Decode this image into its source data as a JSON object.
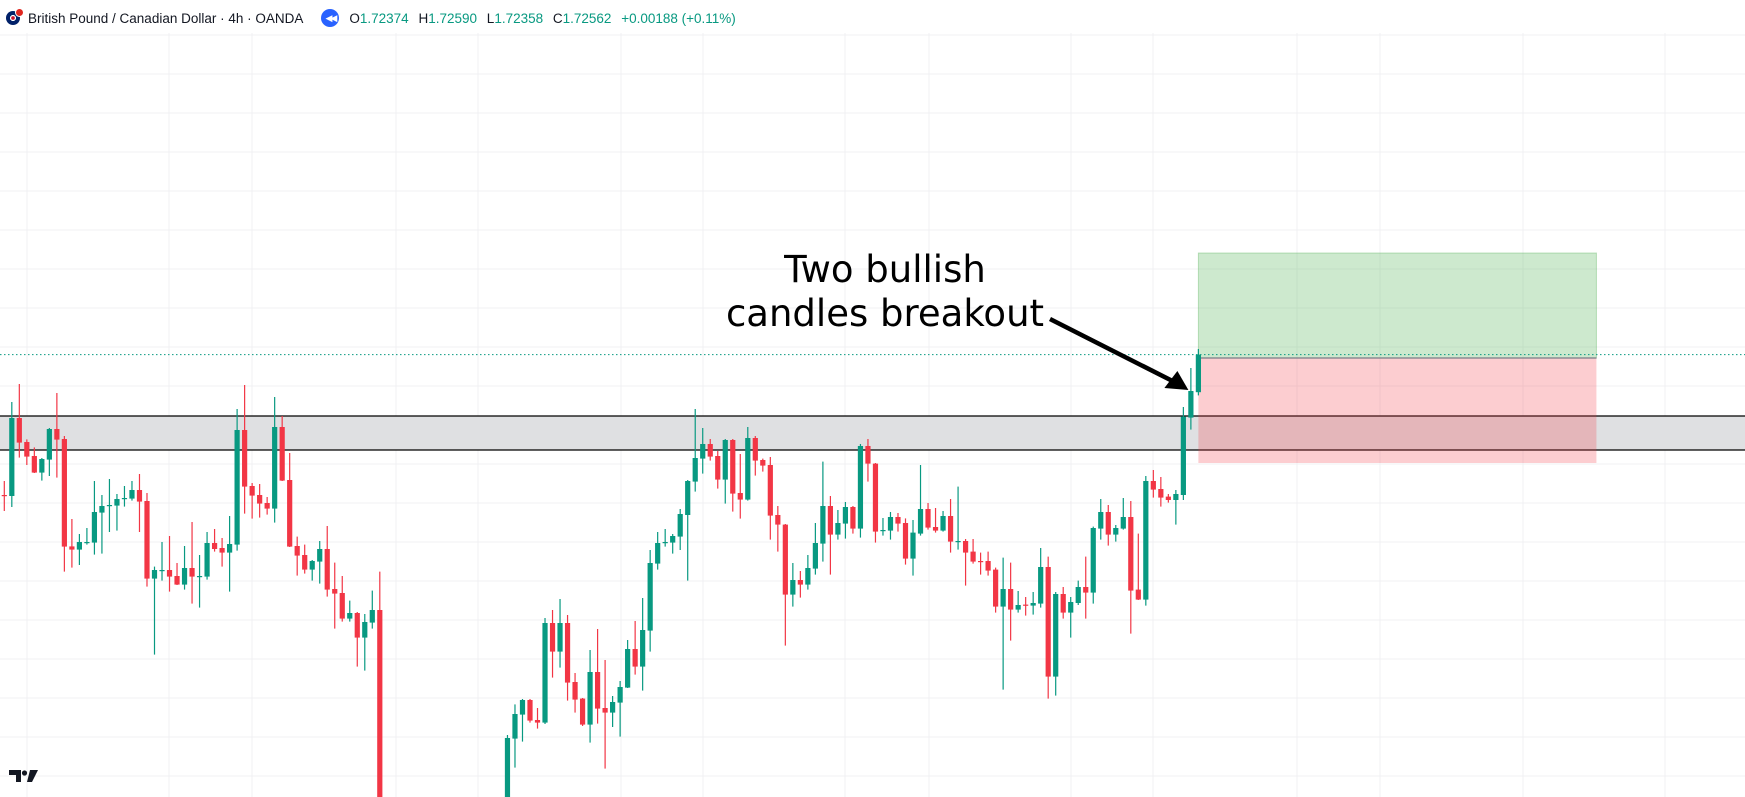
{
  "header": {
    "title": "British Pound / Canadian Dollar · 4h · OANDA",
    "replay_icon": "rewind-icon",
    "ohlc": {
      "o_label": "O",
      "o": "1.72374",
      "h_label": "H",
      "h": "1.72590",
      "l_label": "L",
      "l": "1.72358",
      "c_label": "C",
      "c": "1.72562",
      "change": "+0.00188 (+0.11%)"
    }
  },
  "colors": {
    "up": "#089981",
    "down": "#f23645",
    "zone": "#dfe0e2",
    "target": "#cdebcc",
    "stop": "#fdcaca",
    "accent": "#2962ff"
  },
  "chart_data": {
    "type": "candlestick",
    "symbol": "GBPCAD",
    "timeframe": "4h",
    "grid": true,
    "price_axis_visible": false,
    "last_price": 1.72562,
    "candles_ohlc": [
      [
        1.7186,
        1.7193,
        1.7178,
        1.71855
      ],
      [
        1.71855,
        1.72325,
        1.718,
        1.72245
      ],
      [
        1.72245,
        1.72415,
        1.72047,
        1.72122
      ],
      [
        1.72125,
        1.72138,
        1.7201,
        1.72052
      ],
      [
        1.72055,
        1.72098,
        1.7197,
        1.71972
      ],
      [
        1.71972,
        1.72045,
        1.71932,
        1.7204
      ],
      [
        1.72037,
        1.72195,
        1.71955,
        1.7219
      ],
      [
        1.7219,
        1.7237,
        1.71947,
        1.72137
      ],
      [
        1.7214,
        1.72155,
        1.71477,
        1.71602
      ],
      [
        1.71603,
        1.7174,
        1.71497,
        1.71587
      ],
      [
        1.71587,
        1.71665,
        1.7151,
        1.71625
      ],
      [
        1.7162,
        1.71695,
        1.71612,
        1.71625
      ],
      [
        1.71622,
        1.7193,
        1.71562,
        1.71775
      ],
      [
        1.71772,
        1.7186,
        1.71567,
        1.71805
      ],
      [
        1.71807,
        1.7194,
        1.71675,
        1.7181
      ],
      [
        1.71807,
        1.71865,
        1.71682,
        1.7184
      ],
      [
        1.71842,
        1.71905,
        1.71802,
        1.71845
      ],
      [
        1.71842,
        1.7193,
        1.71832,
        1.71885
      ],
      [
        1.71885,
        1.71965,
        1.71675,
        1.71827
      ],
      [
        1.7183,
        1.7187,
        1.71402,
        1.71442
      ],
      [
        1.71442,
        1.71502,
        1.71062,
        1.71485
      ],
      [
        1.71482,
        1.71625,
        1.71432,
        1.71485
      ],
      [
        1.71485,
        1.71655,
        1.71377,
        1.71452
      ],
      [
        1.71455,
        1.7152,
        1.7141,
        1.71412
      ],
      [
        1.71412,
        1.71605,
        1.71387,
        1.71495
      ],
      [
        1.71495,
        1.71725,
        1.71317,
        1.71452
      ],
      [
        1.71452,
        1.7156,
        1.71297,
        1.71455
      ],
      [
        1.71452,
        1.71675,
        1.71437,
        1.7162
      ],
      [
        1.7162,
        1.7169,
        1.71577,
        1.7159
      ],
      [
        1.71595,
        1.71645,
        1.71502,
        1.71572
      ],
      [
        1.71572,
        1.71755,
        1.71377,
        1.71615
      ],
      [
        1.71612,
        1.7229,
        1.71582,
        1.72185
      ],
      [
        1.72185,
        1.7241,
        1.71767,
        1.71902
      ],
      [
        1.71905,
        1.7192,
        1.71742,
        1.71857
      ],
      [
        1.7186,
        1.71915,
        1.71747,
        1.71817
      ],
      [
        1.7182,
        1.7185,
        1.71762,
        1.71792
      ],
      [
        1.71792,
        1.7235,
        1.71722,
        1.722
      ],
      [
        1.722,
        1.72255,
        1.7193,
        1.71932
      ],
      [
        1.71935,
        1.7207,
        1.716,
        1.71602
      ],
      [
        1.71605,
        1.71652,
        1.71457,
        1.71557
      ],
      [
        1.7156,
        1.71612,
        1.71467,
        1.71487
      ],
      [
        1.71487,
        1.71535,
        1.71432,
        1.7153
      ],
      [
        1.71527,
        1.7163,
        1.71417,
        1.7159
      ],
      [
        1.7159,
        1.71705,
        1.71352,
        1.71387
      ],
      [
        1.7139,
        1.71522,
        1.71192,
        1.71367
      ],
      [
        1.7137,
        1.71455,
        1.71227,
        1.71242
      ],
      [
        1.71242,
        1.71332,
        1.71227,
        1.7127
      ],
      [
        1.7127,
        1.71275,
        1.71002,
        1.71147
      ],
      [
        1.71147,
        1.71265,
        1.70982,
        1.71225
      ],
      [
        1.71222,
        1.71382,
        1.71192,
        1.71285
      ],
      [
        1.71285,
        1.71477,
        1.7012,
        1.702
      ],
      null,
      null,
      null,
      null,
      null,
      null,
      null,
      null,
      null,
      null,
      null,
      null,
      null,
      null,
      null,
      null,
      [
        1.7025,
        1.7066,
        1.702,
        1.70645
      ],
      [
        1.70642,
        1.70813,
        1.70497,
        1.70765
      ],
      [
        1.70762,
        1.7084,
        1.70627,
        1.70835
      ],
      [
        1.70835,
        1.7084,
        1.70722,
        1.70732
      ],
      [
        1.70735,
        1.70795,
        1.70692,
        1.70722
      ],
      [
        1.70722,
        1.71245,
        1.70715,
        1.7122
      ],
      [
        1.7122,
        1.71285,
        1.70947,
        1.71077
      ],
      [
        1.71077,
        1.7134,
        1.70997,
        1.7122
      ],
      [
        1.7122,
        1.7126,
        1.70832,
        1.70922
      ],
      [
        1.70925,
        1.7097,
        1.70772,
        1.70837
      ],
      [
        1.70842,
        1.70845,
        1.70705,
        1.70712
      ],
      [
        1.70712,
        1.71085,
        1.70622,
        1.70975
      ],
      [
        1.70975,
        1.7119,
        1.70717,
        1.70792
      ],
      [
        1.70795,
        1.71035,
        1.70492,
        1.70772
      ],
      [
        1.70772,
        1.70855,
        1.707,
        1.70825
      ],
      [
        1.70822,
        1.7093,
        1.70652,
        1.709
      ],
      [
        1.70897,
        1.71135,
        1.70895,
        1.7109
      ],
      [
        1.7109,
        1.7123,
        1.70962,
        1.71002
      ],
      [
        1.71002,
        1.71345,
        1.70882,
        1.71185
      ],
      [
        1.71182,
        1.71585,
        1.71077,
        1.7152
      ],
      [
        1.71517,
        1.71675,
        1.71487,
        1.7162
      ],
      [
        1.71622,
        1.7169,
        1.71602,
        1.71625
      ],
      [
        1.71622,
        1.71665,
        1.71567,
        1.71655
      ],
      [
        1.71652,
        1.7179,
        1.71585,
        1.71765
      ],
      [
        1.7176,
        1.71935,
        1.71432,
        1.7193
      ],
      [
        1.71927,
        1.7229,
        1.71877,
        1.72045
      ],
      [
        1.72042,
        1.72195,
        1.71967,
        1.72115
      ],
      [
        1.72115,
        1.7214,
        1.72032,
        1.72052
      ],
      [
        1.72055,
        1.7208,
        1.71892,
        1.71937
      ],
      [
        1.71937,
        1.7214,
        1.71817,
        1.72135
      ],
      [
        1.72135,
        1.7214,
        1.71777,
        1.71867
      ],
      [
        1.7187,
        1.72065,
        1.71742,
        1.71837
      ],
      [
        1.71837,
        1.722,
        1.71832,
        1.72145
      ],
      [
        1.72145,
        1.72155,
        1.71957,
        1.72032
      ],
      [
        1.72035,
        1.72042,
        1.71977,
        1.72007
      ],
      [
        1.7201,
        1.7205,
        1.71637,
        1.71757
      ],
      [
        1.7176,
        1.71805,
        1.71577,
        1.71712
      ],
      [
        1.71712,
        1.71715,
        1.71107,
        1.71362
      ],
      [
        1.71362,
        1.7152,
        1.71302,
        1.71435
      ],
      [
        1.71435,
        1.7148,
        1.71347,
        1.71412
      ],
      [
        1.71412,
        1.7156,
        1.71387,
        1.71495
      ],
      [
        1.71492,
        1.7172,
        1.71462,
        1.7162
      ],
      [
        1.71617,
        1.72027,
        1.71527,
        1.71805
      ],
      [
        1.71805,
        1.71855,
        1.71462,
        1.71662
      ],
      [
        1.71662,
        1.71785,
        1.71637,
        1.7172
      ],
      [
        1.71717,
        1.71825,
        1.71642,
        1.718
      ],
      [
        1.718,
        1.71805,
        1.71667,
        1.71692
      ],
      [
        1.71692,
        1.72115,
        1.71647,
        1.72105
      ],
      [
        1.72105,
        1.7214,
        1.71927,
        1.72017
      ],
      [
        1.72017,
        1.7202,
        1.71622,
        1.71677
      ],
      [
        1.71682,
        1.71745,
        1.71657,
        1.71685
      ],
      [
        1.71682,
        1.71775,
        1.71637,
        1.7175
      ],
      [
        1.7175,
        1.7177,
        1.71677,
        1.71717
      ],
      [
        1.7172,
        1.71743,
        1.71512,
        1.71542
      ],
      [
        1.71542,
        1.71735,
        1.71457,
        1.71672
      ],
      [
        1.71667,
        1.7201,
        1.71657,
        1.7179
      ],
      [
        1.7179,
        1.7182,
        1.71687,
        1.71697
      ],
      [
        1.717,
        1.71795,
        1.71672,
        1.71682
      ],
      [
        1.71682,
        1.7178,
        1.71677,
        1.71755
      ],
      [
        1.71755,
        1.7184,
        1.71572,
        1.71627
      ],
      [
        1.71627,
        1.71902,
        1.71587,
        1.7163
      ],
      [
        1.7163,
        1.7164,
        1.71407,
        1.71572
      ],
      [
        1.71577,
        1.7164,
        1.71517,
        1.71527
      ],
      [
        1.7153,
        1.71572,
        1.71462,
        1.71527
      ],
      [
        1.7153,
        1.71577,
        1.71457,
        1.71482
      ],
      [
        1.71487,
        1.71497,
        1.71272,
        1.71302
      ],
      [
        1.71302,
        1.71547,
        1.70887,
        1.7139
      ],
      [
        1.7139,
        1.71522,
        1.71132,
        1.71287
      ],
      [
        1.71287,
        1.7138,
        1.71272,
        1.7131
      ],
      [
        1.71312,
        1.7135,
        1.71257,
        1.71307
      ],
      [
        1.71307,
        1.71375,
        1.71262,
        1.7132
      ],
      [
        1.71317,
        1.71595,
        1.71297,
        1.715
      ],
      [
        1.715,
        1.71552,
        1.70842,
        1.70952
      ],
      [
        1.70952,
        1.71375,
        1.70857,
        1.71365
      ],
      [
        1.71365,
        1.714,
        1.71242,
        1.71272
      ],
      [
        1.71272,
        1.7135,
        1.71147,
        1.71325
      ],
      [
        1.7132,
        1.71432,
        1.7131,
        1.714
      ],
      [
        1.714,
        1.71552,
        1.71242,
        1.71372
      ],
      [
        1.71372,
        1.71702,
        1.71317,
        1.71695
      ],
      [
        1.71692,
        1.7184,
        1.71637,
        1.71775
      ],
      [
        1.71775,
        1.7181,
        1.71607,
        1.71662
      ],
      [
        1.71662,
        1.7171,
        1.71627,
        1.71695
      ],
      [
        1.71692,
        1.71845,
        1.71687,
        1.7175
      ],
      [
        1.7175,
        1.7183,
        1.71167,
        1.71382
      ],
      [
        1.71387,
        1.71667,
        1.71335,
        1.71337
      ],
      [
        1.71337,
        1.71955,
        1.71307,
        1.7193
      ],
      [
        1.7193,
        1.71985,
        1.71847,
        1.71887
      ],
      [
        1.7189,
        1.7195,
        1.71802,
        1.71847
      ],
      [
        1.71852,
        1.71865,
        1.71822,
        1.71835
      ],
      [
        1.71835,
        1.71885,
        1.71712,
        1.71865
      ],
      [
        1.7186,
        1.723,
        1.71835,
        1.72252
      ],
      [
        1.72247,
        1.72495,
        1.72187,
        1.7238
      ],
      [
        1.72374,
        1.7259,
        1.72358,
        1.72562
      ]
    ],
    "resistance_zone": {
      "top": 1.72255,
      "bottom": 1.72085
    },
    "long_position": {
      "entry": 1.72545,
      "target": 1.7307,
      "stop": 1.7202,
      "bars": 53
    },
    "annotation": {
      "lines": [
        "Two bullish",
        "candles breakout"
      ],
      "arrow_to_candle": 159
    }
  },
  "logo": "TV"
}
